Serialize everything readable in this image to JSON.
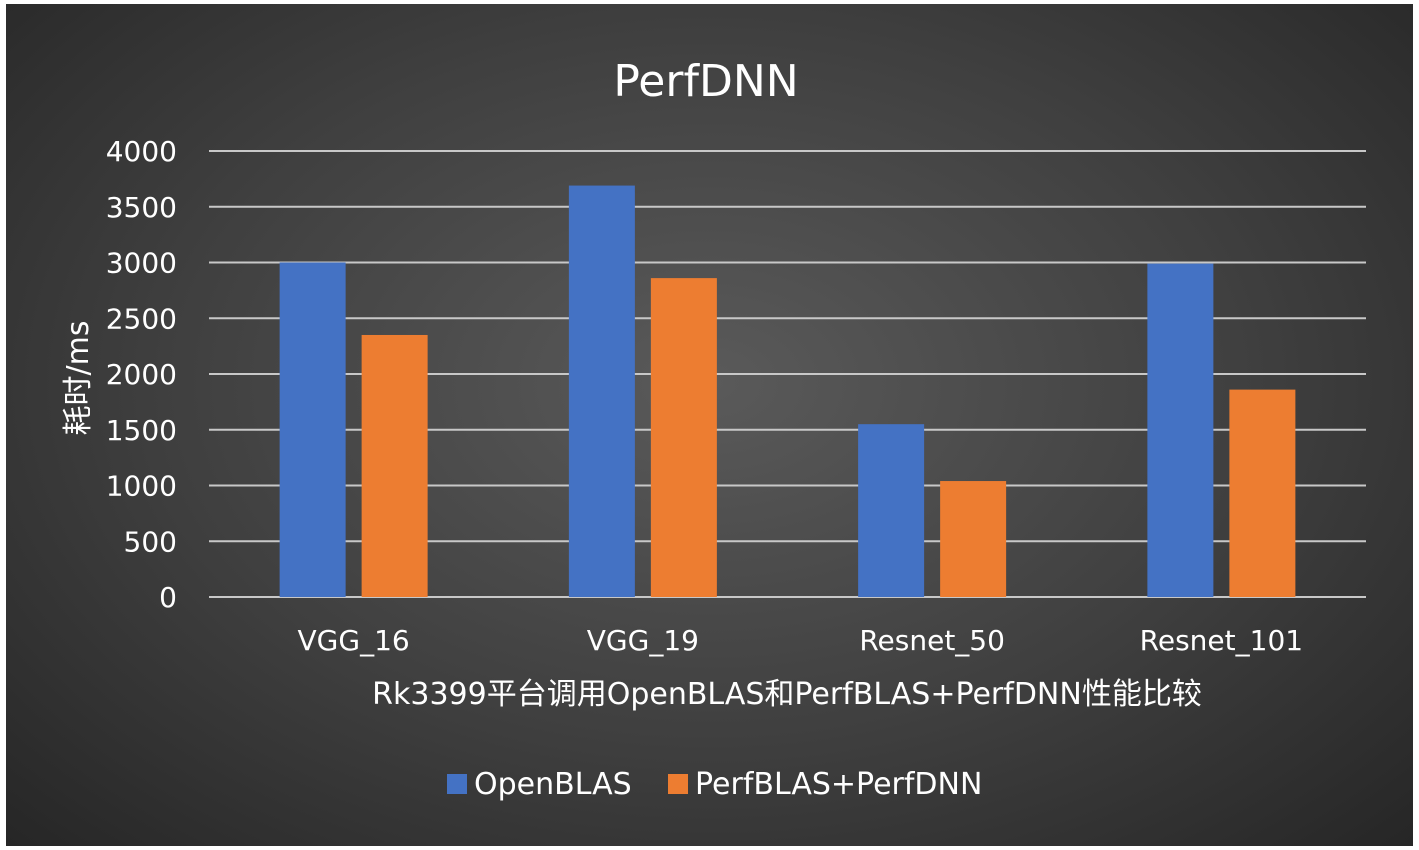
{
  "chart_data": {
    "type": "bar",
    "title": "PerfDNN",
    "xlabel": "Rk3399平台调用OpenBLAS和PerfBLAS+PerfDNN性能比较",
    "ylabel": "耗时/ms",
    "ylim": [
      0,
      4000
    ],
    "yticks": [
      "0",
      "500",
      "1000",
      "1500",
      "2000",
      "2500",
      "3000",
      "3500",
      "4000"
    ],
    "grid": true,
    "legend_position": "bottom",
    "categories": [
      "VGG_16",
      "VGG_19",
      "Resnet_50",
      "Resnet_101"
    ],
    "series": [
      {
        "name": "OpenBLAS",
        "color": "#4472c4",
        "values": [
          3000,
          3690,
          1550,
          2990
        ]
      },
      {
        "name": "PerfBLAS+PerfDNN",
        "color": "#ed7d31",
        "values": [
          2350,
          2860,
          1040,
          1860
        ]
      }
    ]
  }
}
